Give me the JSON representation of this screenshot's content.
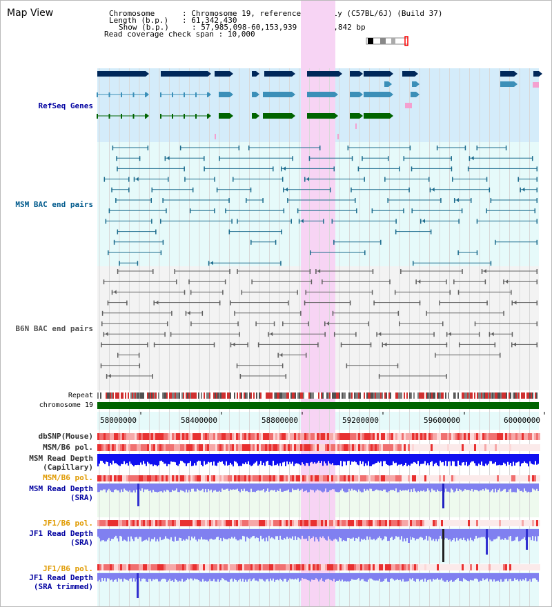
{
  "header": {
    "title": "Map View",
    "info": [
      {
        "label": "Chromosome      ",
        "value": "Chromosome 19, reference assembly (C57BL/6J) (Build 37)"
      },
      {
        "label": "Length (b.p.)   ",
        "value": "61,342,430"
      },
      {
        "label": "Show (b.p.)     ",
        "value": "57,985,098-60,153,939 : 2,168,842 bp"
      },
      {
        "label": "Read coverage check span",
        "value": "10,000"
      }
    ]
  },
  "ideogram": {
    "label": "chromosome 19 ideogram"
  },
  "tracks": {
    "refseq": {
      "label": "RefSeq Genes",
      "color": "#0000b4"
    },
    "msm_bac": {
      "label": "MSM BAC end pairs",
      "color": "#005a8c"
    },
    "b6n_bac": {
      "label": "B6N BAC end pairs",
      "color": "#505050"
    },
    "repeat": {
      "label": "Repeat"
    },
    "chromosome": {
      "label": "chromosome 19"
    },
    "dbsnp": {
      "label": "dbSNP(Mouse)"
    },
    "msm_b6_pol_1": {
      "label": "MSM/B6 pol."
    },
    "msm_depth_cap": {
      "label": "MSM Read Depth\n(Capillary)"
    },
    "msm_b6_pol_2": {
      "label": "MSM/B6 pol."
    },
    "msm_depth_sra": {
      "label": "MSM Read Depth\n(SRA)"
    },
    "jf1_b6_pol_1": {
      "label": "JF1/B6 pol."
    },
    "jf1_depth_sra": {
      "label": "JF1 Read Depth\n(SRA)"
    },
    "jf1_b6_pol_2": {
      "label": "JF1/B6 pol."
    },
    "jf1_depth_trim": {
      "label": "JF1 Read Depth\n(SRA trimmed)"
    }
  },
  "axis": {
    "ticks": [
      "58000000",
      "58400000",
      "58800000",
      "59200000",
      "59600000",
      "60000000"
    ]
  },
  "colors": {
    "highlight": "#f7d4f4",
    "refseq_bg": "#d4ecfa",
    "bac_bg": "#e6fafa",
    "gray_bg": "#f3f3f3",
    "green_bg": "#eefaee",
    "label_gray": "#303030",
    "label_blue": "#0000a0",
    "label_orange": "#e09a00",
    "label_teal": "#005a8c"
  }
}
